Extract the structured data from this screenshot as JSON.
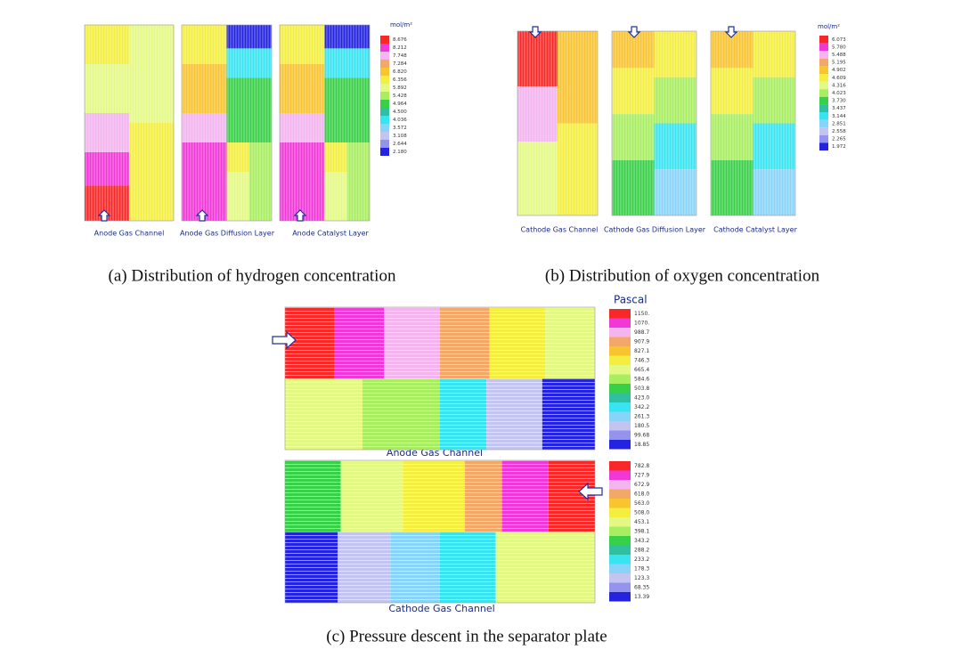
{
  "panel_a": {
    "unit": "mol/m²",
    "legend": [
      "8.676",
      "8.212",
      "7.748",
      "7.284",
      "6.820",
      "6.356",
      "5.892",
      "5.428",
      "4.964",
      "4.500",
      "4.036",
      "3.572",
      "3.108",
      "2.644",
      "2.180"
    ],
    "labels": [
      "Anode Gas Channel",
      "Anode Gas Diffusion Layer",
      "Anode Catalyst Layer"
    ],
    "caption": "(a) Distribution of hydrogen concentration"
  },
  "panel_b": {
    "unit": "mol/m²",
    "legend": [
      "6.073",
      "5.780",
      "5.488",
      "5.195",
      "4.902",
      "4.609",
      "4.316",
      "4.023",
      "3.730",
      "3.437",
      "3.144",
      "2.851",
      "2.558",
      "2.265",
      "1.972"
    ],
    "labels": [
      "Cathode Gas Channel",
      "Cathode Gas Diffusion Layer",
      "Cathode Catalyst Layer"
    ],
    "caption": "(b) Distribution of oxygen concentration"
  },
  "panel_c": {
    "unit": "Pascal",
    "anode": {
      "label": "Anode Gas Channel",
      "legend": [
        "1150.",
        "1070.",
        "988.7",
        "907.9",
        "827.1",
        "746.3",
        "665.4",
        "584.6",
        "503.8",
        "423.0",
        "342.2",
        "261.3",
        "180.5",
        "99.68",
        "18.85"
      ]
    },
    "cathode": {
      "label": "Cathode Gas Channel",
      "legend": [
        "782.8",
        "727.9",
        "672.9",
        "618.0",
        "563.0",
        "508.0",
        "453.1",
        "398.1",
        "343.2",
        "288.2",
        "233.2",
        "178.3",
        "123.3",
        "68.35",
        "13.39"
      ]
    },
    "caption": "(c) Pressure descent in the separator plate"
  }
}
